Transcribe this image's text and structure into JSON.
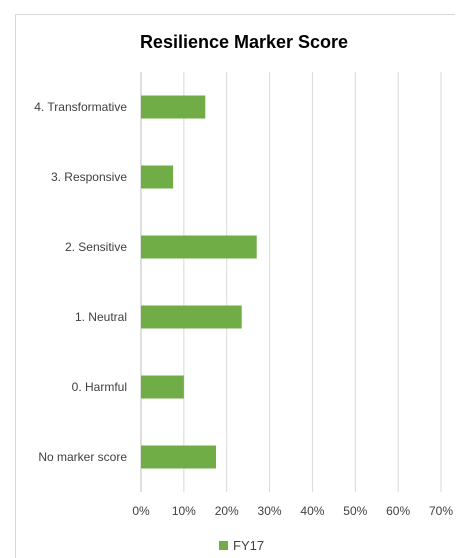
{
  "chart_data": {
    "type": "bar",
    "orientation": "horizontal",
    "title": "Resilience Marker Score",
    "categories": [
      "4. Transformative",
      "3. Responsive",
      "2. Sensitive",
      "1. Neutral",
      "0. Harmful",
      "No marker score"
    ],
    "series": [
      {
        "name": "FY17",
        "values": [
          0.15,
          0.075,
          0.27,
          0.235,
          0.1,
          0.175
        ],
        "color": "#70ad47"
      }
    ],
    "x_ticks": [
      "0%",
      "10%",
      "20%",
      "30%",
      "40%",
      "50%",
      "60%",
      "70%"
    ],
    "xlim": [
      0,
      0.7
    ],
    "grid": true,
    "legend_position": "bottom"
  }
}
